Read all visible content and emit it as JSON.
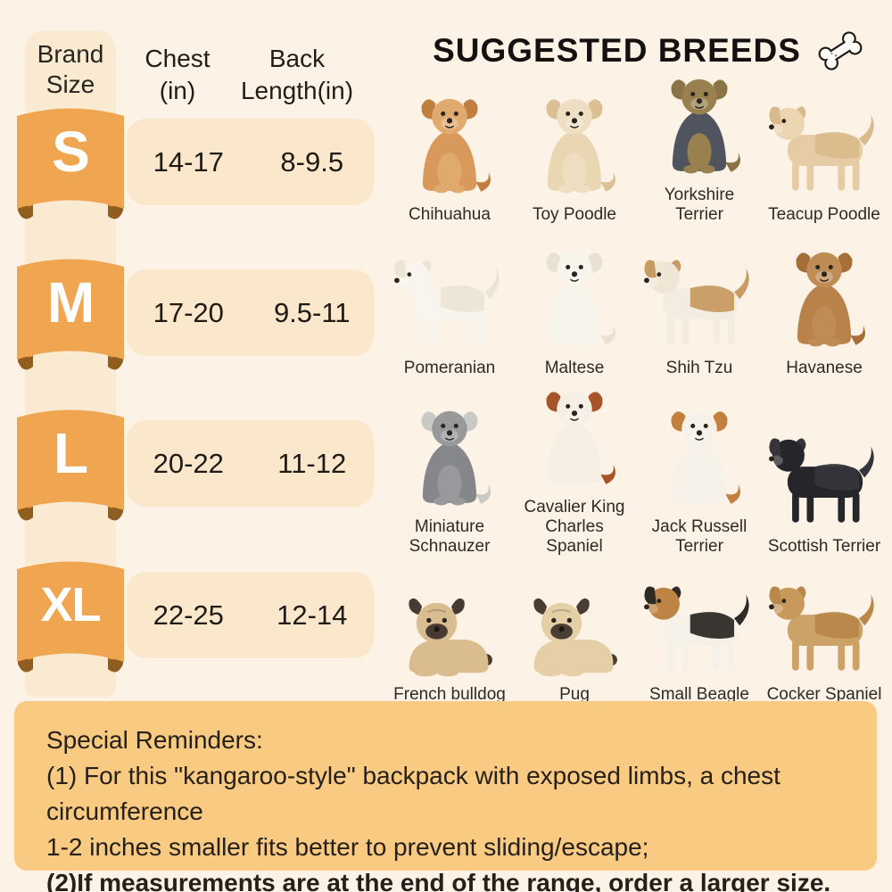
{
  "page": {
    "background": "#FDF2E6"
  },
  "size_chart": {
    "brand_label": "Brand\nSize",
    "columns": {
      "chest": "Chest\n(in)",
      "back": "Back\nLength(in)"
    },
    "rows": [
      {
        "size": "S",
        "chest": "14-17",
        "back": "8-9.5"
      },
      {
        "size": "M",
        "chest": "17-20",
        "back": "9.5-11"
      },
      {
        "size": "L",
        "chest": "20-22",
        "back": "11-12"
      },
      {
        "size": "XL",
        "chest": "22-25",
        "back": "12-14"
      }
    ],
    "colors": {
      "ribbon": "#F0A650",
      "ribbon_side": "#E2923A",
      "ribbon_fold": "#8F5E1F",
      "strip": "#FBEAD2",
      "row_pill": "#FBE8CC",
      "letter": "#FFFFFF"
    }
  },
  "breeds": {
    "title": "SUGGESTED BREEDS",
    "icon": "bone-icon",
    "items": [
      {
        "name": "Chihuahua",
        "pose": "sit",
        "c1": "#D9995B",
        "c2": "#C07F3F",
        "c3": "#E0A96E"
      },
      {
        "name": "Toy Poodle",
        "pose": "sit",
        "c1": "#EAD6B2",
        "c2": "#DCC094",
        "c3": "#EFDFC2"
      },
      {
        "name": "Yorkshire Terrier",
        "pose": "sit",
        "c1": "#4F545E",
        "c2": "#8A7345",
        "c3": "#98814F"
      },
      {
        "name": "Teacup Poodle",
        "pose": "stand",
        "c1": "#E6CCA4",
        "c2": "#D9BA8C",
        "c3": "#EBD5B2"
      },
      {
        "name": "Pomeranian",
        "pose": "stand",
        "c1": "#F8F5EE",
        "c2": "#ECE4D4",
        "c3": "#F8F5EE"
      },
      {
        "name": "Maltese",
        "pose": "sit",
        "c1": "#F7F4EC",
        "c2": "#E9E2D2",
        "c3": "#F7F4EC"
      },
      {
        "name": "Shih Tzu",
        "pose": "stand",
        "c1": "#F3EDE1",
        "c2": "#C79B63",
        "c3": "#EFE6D6"
      },
      {
        "name": "Havanese",
        "pose": "sit",
        "c1": "#B9824A",
        "c2": "#A66F38",
        "c3": "#C08C55"
      },
      {
        "name": "Miniature Schnauzer",
        "pose": "sit",
        "c1": "#85878A",
        "c2": "#C9CAC6",
        "c3": "#97999B"
      },
      {
        "name": "Cavalier King Charles Spaniel",
        "pose": "sit",
        "c1": "#F5EFE5",
        "c2": "#A8542A",
        "c3": "#F5EFE5"
      },
      {
        "name": "Jack Russell Terrier",
        "pose": "sit",
        "c1": "#F6F2EA",
        "c2": "#C2803C",
        "c3": "#F6F2EA"
      },
      {
        "name": "Scottish Terrier",
        "pose": "stand",
        "c1": "#26262A",
        "c2": "#34343A",
        "c3": "#26262A"
      },
      {
        "name": "French bulldog",
        "pose": "lie",
        "c1": "#D9BC90",
        "c2": "#463A32",
        "c3": "#D9BC90"
      },
      {
        "name": "Pug",
        "pose": "lie",
        "c1": "#E4CFA6",
        "c2": "#4A3E34",
        "c3": "#E4CFA6"
      },
      {
        "name": "Small Beagle",
        "pose": "stand",
        "c1": "#F6F1E8",
        "c2": "#2E2A26",
        "c3": "#BE8446"
      },
      {
        "name": "Cocker Spaniel",
        "pose": "stand",
        "c1": "#CDA268",
        "c2": "#B8874A",
        "c3": "#C79A5C"
      }
    ]
  },
  "reminders": {
    "title": "Special Reminders:",
    "line1": "(1) For this \"kangaroo-style\" backpack with exposed limbs, a chest circumference",
    "line2": "1-2 inches smaller fits better to prevent sliding/escape;",
    "line3": "(2)If measurements are at the end of the range, order a larger size."
  }
}
